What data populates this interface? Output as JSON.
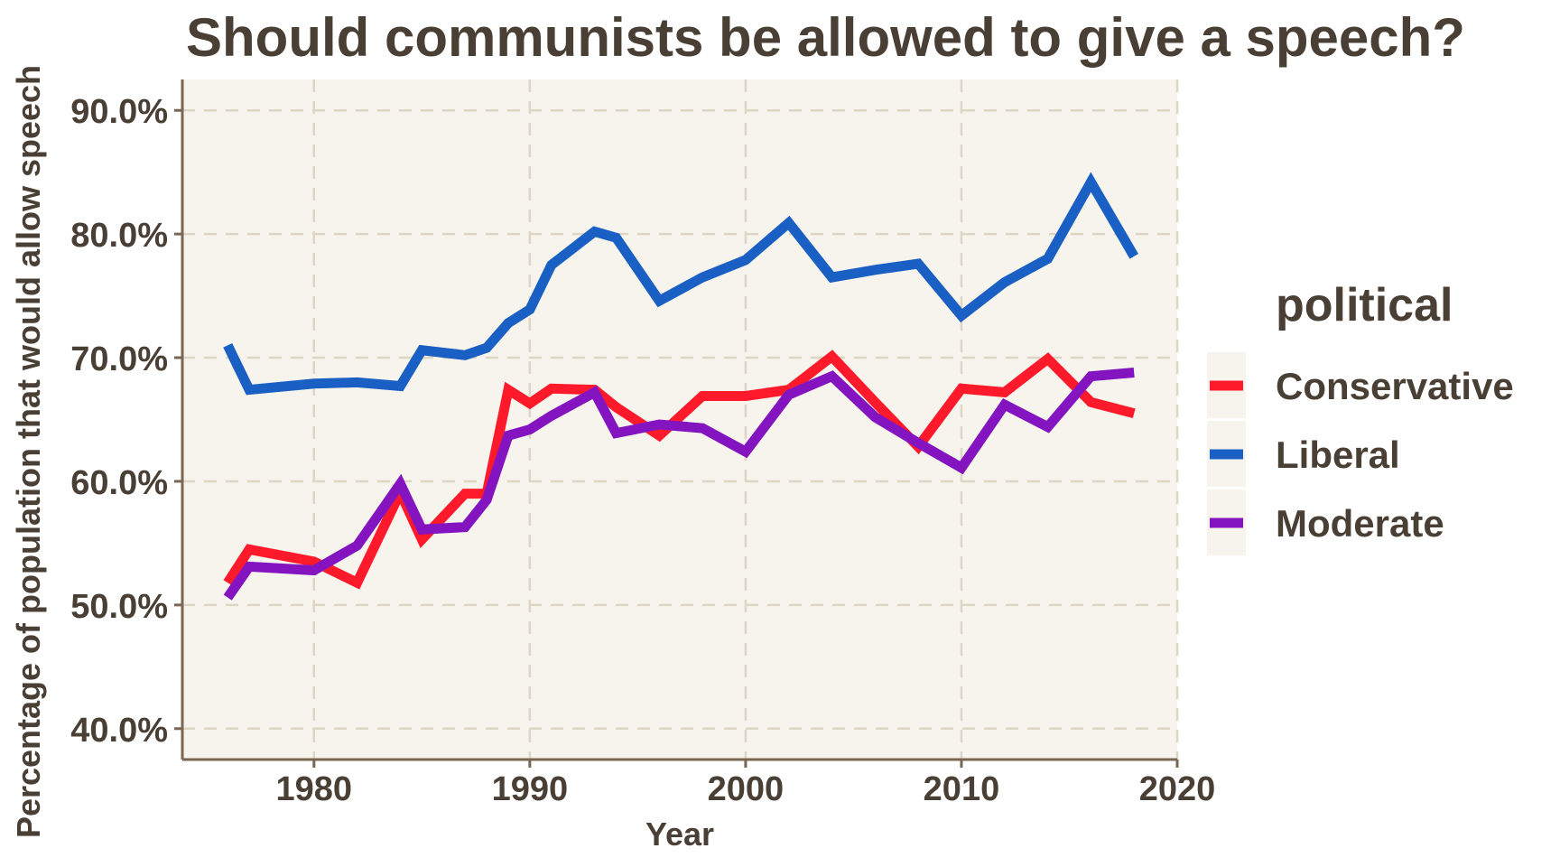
{
  "chart_data": {
    "type": "line",
    "title": "Should communists be allowed to give a speech?",
    "xlabel": "Year",
    "ylabel": "Percentage of population that would allow speech",
    "xlim": [
      1973.9,
      2020
    ],
    "ylim": [
      37.5,
      92.5
    ],
    "x_ticks": [
      1980,
      1990,
      2000,
      2010,
      2020
    ],
    "x_tick_labels": [
      "1980",
      "1990",
      "2000",
      "2010",
      "2020"
    ],
    "y_ticks": [
      40,
      50,
      60,
      70,
      80,
      90
    ],
    "y_tick_labels": [
      "40.0%",
      "50.0%",
      "60.0%",
      "70.0%",
      "80.0%",
      "90.0%"
    ],
    "grid": true,
    "legend": {
      "title": "political",
      "position": "right"
    },
    "x": [
      1976,
      1977,
      1980,
      1982,
      1984,
      1985,
      1987,
      1988,
      1989,
      1990,
      1991,
      1993,
      1994,
      1996,
      1998,
      2000,
      2002,
      2004,
      2006,
      2008,
      2010,
      2012,
      2014,
      2016,
      2018
    ],
    "series": [
      {
        "name": "Conservative",
        "color": "#FF1A2B",
        "values": [
          51.8,
          54.5,
          53.5,
          51.8,
          59.1,
          55.3,
          59.0,
          59.0,
          67.4,
          66.3,
          67.5,
          67.4,
          66.0,
          63.7,
          66.9,
          66.9,
          67.4,
          70.1,
          66.4,
          62.8,
          67.5,
          67.2,
          69.9,
          66.4,
          65.5
        ]
      },
      {
        "name": "Liberal",
        "color": "#1A5FC4",
        "values": [
          71.0,
          67.4,
          67.9,
          68.0,
          67.7,
          70.6,
          70.2,
          70.8,
          72.8,
          73.9,
          77.5,
          80.2,
          79.7,
          74.6,
          76.5,
          77.9,
          80.9,
          76.5,
          77.1,
          77.6,
          73.4,
          76.1,
          78.0,
          84.2,
          78.2
        ]
      },
      {
        "name": "Moderate",
        "color": "#8413C0",
        "values": [
          50.6,
          53.1,
          52.8,
          54.8,
          59.8,
          56.1,
          56.3,
          58.5,
          63.7,
          64.2,
          65.3,
          67.2,
          63.9,
          64.6,
          64.3,
          62.4,
          67.0,
          68.5,
          65.2,
          63.1,
          61.1,
          66.2,
          64.4,
          68.5,
          68.8
        ]
      }
    ]
  }
}
